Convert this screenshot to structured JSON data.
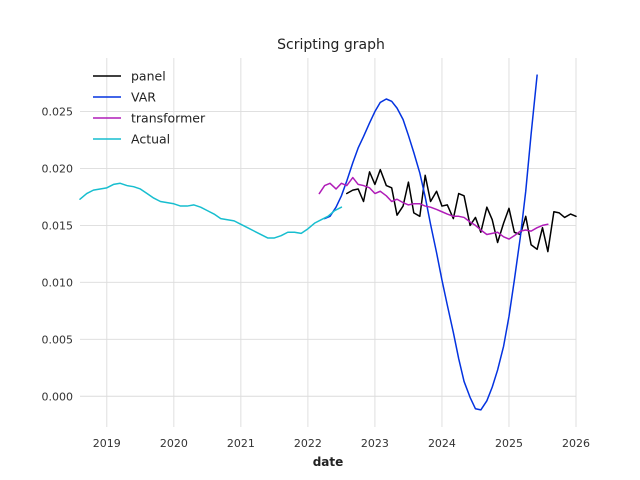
{
  "chart_data": {
    "type": "line",
    "title": "Scripting graph",
    "xlabel": "date",
    "ylabel": "",
    "xlim": [
      2018.6,
      2026.0
    ],
    "ylim": [
      -0.0027,
      0.0297
    ],
    "x_ticks": [
      {
        "value": 2019,
        "label": "2019"
      },
      {
        "value": 2020,
        "label": "2020"
      },
      {
        "value": 2021,
        "label": "2021"
      },
      {
        "value": 2022,
        "label": "2022"
      },
      {
        "value": 2023,
        "label": "2023"
      },
      {
        "value": 2024,
        "label": "2024"
      },
      {
        "value": 2025,
        "label": "2025"
      },
      {
        "value": 2026,
        "label": "2026"
      }
    ],
    "y_ticks": [
      {
        "value": 0.0,
        "label": "0.000"
      },
      {
        "value": 0.005,
        "label": "0.005"
      },
      {
        "value": 0.01,
        "label": "0.010"
      },
      {
        "value": 0.015,
        "label": "0.015"
      },
      {
        "value": 0.02,
        "label": "0.020"
      },
      {
        "value": 0.025,
        "label": "0.025"
      }
    ],
    "grid": true,
    "legend_position": "top-left",
    "series": [
      {
        "name": "panel",
        "color": "#000000",
        "points": [
          [
            2022.58,
            0.0178
          ],
          [
            2022.67,
            0.0181
          ],
          [
            2022.75,
            0.0182
          ],
          [
            2022.83,
            0.0171
          ],
          [
            2022.92,
            0.0197
          ],
          [
            2023.0,
            0.0186
          ],
          [
            2023.08,
            0.0199
          ],
          [
            2023.17,
            0.0185
          ],
          [
            2023.25,
            0.0183
          ],
          [
            2023.33,
            0.0159
          ],
          [
            2023.42,
            0.0167
          ],
          [
            2023.5,
            0.0188
          ],
          [
            2023.58,
            0.0161
          ],
          [
            2023.67,
            0.0158
          ],
          [
            2023.75,
            0.0194
          ],
          [
            2023.83,
            0.0171
          ],
          [
            2023.92,
            0.018
          ],
          [
            2024.0,
            0.0167
          ],
          [
            2024.08,
            0.0168
          ],
          [
            2024.17,
            0.0156
          ],
          [
            2024.25,
            0.0178
          ],
          [
            2024.33,
            0.0176
          ],
          [
            2024.42,
            0.015
          ],
          [
            2024.5,
            0.0157
          ],
          [
            2024.58,
            0.0144
          ],
          [
            2024.67,
            0.0166
          ],
          [
            2024.75,
            0.0155
          ],
          [
            2024.83,
            0.0135
          ],
          [
            2024.92,
            0.0152
          ],
          [
            2025.0,
            0.0165
          ],
          [
            2025.08,
            0.0144
          ],
          [
            2025.17,
            0.0142
          ],
          [
            2025.25,
            0.0158
          ],
          [
            2025.33,
            0.0133
          ],
          [
            2025.42,
            0.0129
          ],
          [
            2025.5,
            0.0148
          ],
          [
            2025.58,
            0.0127
          ],
          [
            2025.67,
            0.0162
          ],
          [
            2025.75,
            0.0161
          ],
          [
            2025.83,
            0.0157
          ],
          [
            2025.92,
            0.016
          ],
          [
            2026.0,
            0.0158
          ]
        ]
      },
      {
        "name": "VAR",
        "color": "#0433e0",
        "points": [
          [
            2022.25,
            0.0156
          ],
          [
            2022.33,
            0.0158
          ],
          [
            2022.42,
            0.0166
          ],
          [
            2022.5,
            0.0176
          ],
          [
            2022.58,
            0.0189
          ],
          [
            2022.67,
            0.0205
          ],
          [
            2022.75,
            0.0218
          ],
          [
            2022.83,
            0.0228
          ],
          [
            2022.92,
            0.024
          ],
          [
            2023.0,
            0.025
          ],
          [
            2023.08,
            0.0258
          ],
          [
            2023.17,
            0.0261
          ],
          [
            2023.25,
            0.0259
          ],
          [
            2023.33,
            0.0253
          ],
          [
            2023.42,
            0.0243
          ],
          [
            2023.5,
            0.0229
          ],
          [
            2023.58,
            0.0214
          ],
          [
            2023.67,
            0.0196
          ],
          [
            2023.75,
            0.0175
          ],
          [
            2023.83,
            0.0151
          ],
          [
            2023.92,
            0.0126
          ],
          [
            2024.0,
            0.0102
          ],
          [
            2024.08,
            0.008
          ],
          [
            2024.17,
            0.0056
          ],
          [
            2024.25,
            0.0033
          ],
          [
            2024.33,
            0.0013
          ],
          [
            2024.42,
            -0.0001
          ],
          [
            2024.5,
            -0.0011
          ],
          [
            2024.58,
            -0.0012
          ],
          [
            2024.67,
            -0.0004
          ],
          [
            2024.75,
            0.0008
          ],
          [
            2024.83,
            0.0023
          ],
          [
            2024.92,
            0.0044
          ],
          [
            2025.0,
            0.007
          ],
          [
            2025.08,
            0.0102
          ],
          [
            2025.17,
            0.014
          ],
          [
            2025.25,
            0.018
          ],
          [
            2025.33,
            0.023
          ],
          [
            2025.42,
            0.0282
          ]
        ]
      },
      {
        "name": "transformer",
        "color": "#b01db8",
        "points": [
          [
            2022.17,
            0.0178
          ],
          [
            2022.25,
            0.0185
          ],
          [
            2022.33,
            0.0187
          ],
          [
            2022.42,
            0.0182
          ],
          [
            2022.5,
            0.0187
          ],
          [
            2022.58,
            0.0185
          ],
          [
            2022.67,
            0.0192
          ],
          [
            2022.75,
            0.0186
          ],
          [
            2022.83,
            0.0185
          ],
          [
            2022.92,
            0.0183
          ],
          [
            2023.0,
            0.0178
          ],
          [
            2023.08,
            0.018
          ],
          [
            2023.17,
            0.0176
          ],
          [
            2023.25,
            0.0171
          ],
          [
            2023.33,
            0.0173
          ],
          [
            2023.42,
            0.017
          ],
          [
            2023.5,
            0.0168
          ],
          [
            2023.58,
            0.0169
          ],
          [
            2023.67,
            0.0169
          ],
          [
            2023.75,
            0.0167
          ],
          [
            2023.83,
            0.0166
          ],
          [
            2023.92,
            0.0164
          ],
          [
            2024.0,
            0.0162
          ],
          [
            2024.08,
            0.016
          ],
          [
            2024.17,
            0.0158
          ],
          [
            2024.25,
            0.0158
          ],
          [
            2024.33,
            0.0157
          ],
          [
            2024.42,
            0.0153
          ],
          [
            2024.5,
            0.015
          ],
          [
            2024.58,
            0.0146
          ],
          [
            2024.67,
            0.0142
          ],
          [
            2024.75,
            0.0143
          ],
          [
            2024.83,
            0.0144
          ],
          [
            2024.92,
            0.014
          ],
          [
            2025.0,
            0.0138
          ],
          [
            2025.08,
            0.0141
          ],
          [
            2025.17,
            0.0145
          ],
          [
            2025.25,
            0.0146
          ],
          [
            2025.33,
            0.0145
          ],
          [
            2025.42,
            0.0148
          ],
          [
            2025.5,
            0.015
          ],
          [
            2025.58,
            0.0151
          ]
        ]
      },
      {
        "name": "Actual",
        "color": "#17becf",
        "points": [
          [
            2018.6,
            0.0173
          ],
          [
            2018.7,
            0.0178
          ],
          [
            2018.8,
            0.0181
          ],
          [
            2018.9,
            0.0182
          ],
          [
            2019.0,
            0.0183
          ],
          [
            2019.1,
            0.0186
          ],
          [
            2019.2,
            0.0187
          ],
          [
            2019.3,
            0.0185
          ],
          [
            2019.4,
            0.0184
          ],
          [
            2019.5,
            0.0182
          ],
          [
            2019.6,
            0.0178
          ],
          [
            2019.7,
            0.0174
          ],
          [
            2019.8,
            0.0171
          ],
          [
            2019.9,
            0.017
          ],
          [
            2020.0,
            0.0169
          ],
          [
            2020.1,
            0.0167
          ],
          [
            2020.2,
            0.0167
          ],
          [
            2020.3,
            0.0168
          ],
          [
            2020.4,
            0.0166
          ],
          [
            2020.5,
            0.0163
          ],
          [
            2020.6,
            0.016
          ],
          [
            2020.7,
            0.0156
          ],
          [
            2020.8,
            0.0155
          ],
          [
            2020.9,
            0.0154
          ],
          [
            2021.0,
            0.0151
          ],
          [
            2021.1,
            0.0148
          ],
          [
            2021.2,
            0.0145
          ],
          [
            2021.3,
            0.0142
          ],
          [
            2021.4,
            0.0139
          ],
          [
            2021.5,
            0.0139
          ],
          [
            2021.6,
            0.0141
          ],
          [
            2021.7,
            0.0144
          ],
          [
            2021.8,
            0.0144
          ],
          [
            2021.9,
            0.0143
          ],
          [
            2022.0,
            0.0147
          ],
          [
            2022.1,
            0.0152
          ],
          [
            2022.2,
            0.0155
          ],
          [
            2022.3,
            0.0158
          ],
          [
            2022.4,
            0.0163
          ],
          [
            2022.5,
            0.0166
          ]
        ]
      }
    ]
  }
}
